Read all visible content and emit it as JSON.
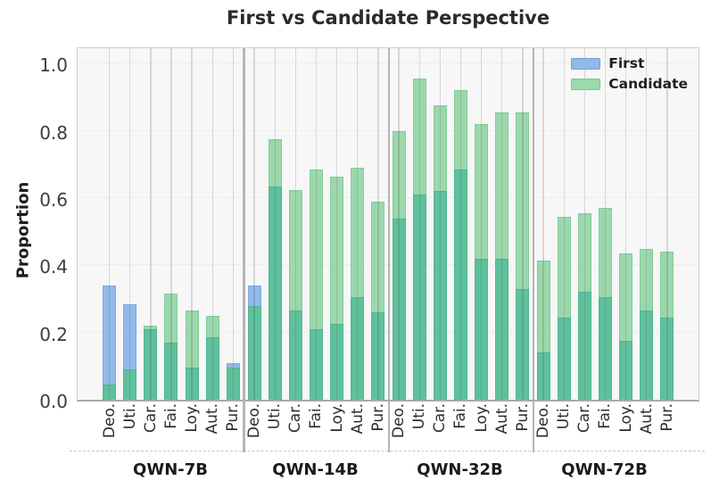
{
  "chart_data": {
    "type": "bar",
    "title": "First vs Candidate Perspective",
    "ylabel": "Proportion",
    "xlabel": "",
    "ylim": [
      0,
      1.05
    ],
    "grid": true,
    "legend_position": "upper right",
    "yticks": [
      0.0,
      0.2,
      0.4,
      0.6,
      0.8,
      1.0
    ],
    "ytick_labels": [
      "0.0",
      "0.2",
      "0.4",
      "0.6",
      "0.8",
      "1.0"
    ],
    "categories": [
      "Deo.",
      "Uti.",
      "Car.",
      "Fai.",
      "Loy.",
      "Aut.",
      "Pur."
    ],
    "legend": [
      {
        "label": "First",
        "color": "#92b9e8"
      },
      {
        "label": "Candidate",
        "color": "#9bd8ac"
      }
    ],
    "overlap_color": "#5fc09c",
    "groups": [
      {
        "label": "QWN-7B",
        "first": [
          0.34,
          0.285,
          0.21,
          0.17,
          0.095,
          0.185,
          0.11
        ],
        "candidate": [
          0.045,
          0.09,
          0.22,
          0.315,
          0.265,
          0.25,
          0.095
        ]
      },
      {
        "label": "QWN-14B",
        "first": [
          0.34,
          0.635,
          0.265,
          0.21,
          0.225,
          0.305,
          0.26
        ],
        "candidate": [
          0.28,
          0.775,
          0.625,
          0.685,
          0.665,
          0.69,
          0.59
        ]
      },
      {
        "label": "QWN-32B",
        "first": [
          0.54,
          0.61,
          0.62,
          0.685,
          0.42,
          0.42,
          0.33
        ],
        "candidate": [
          0.8,
          0.955,
          0.875,
          0.92,
          0.82,
          0.855,
          0.855
        ]
      },
      {
        "label": "QWN-72B",
        "first": [
          0.14,
          0.245,
          0.32,
          0.305,
          0.175,
          0.265,
          0.245
        ],
        "candidate": [
          0.415,
          0.545,
          0.555,
          0.57,
          0.435,
          0.45,
          0.44
        ]
      }
    ]
  }
}
